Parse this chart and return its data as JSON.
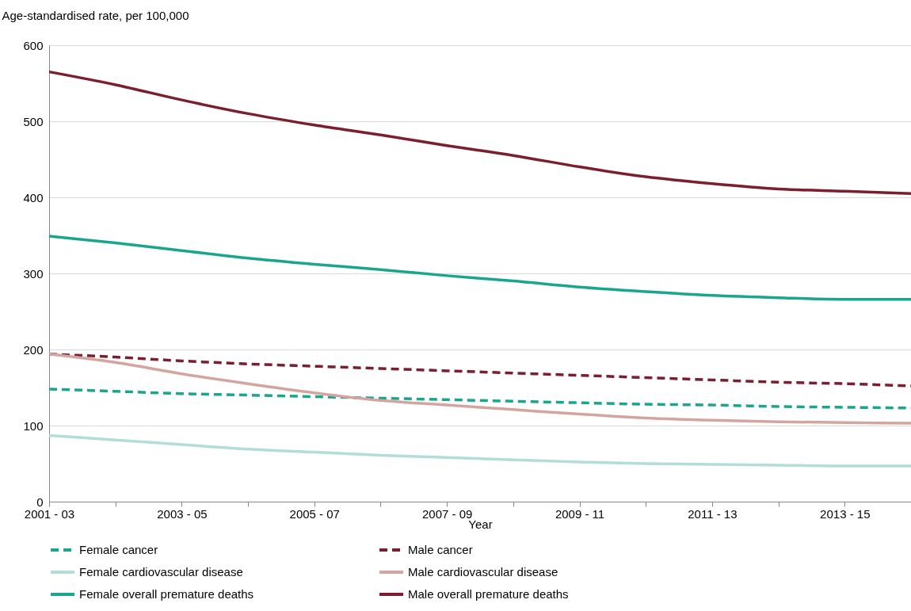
{
  "chart_data": {
    "type": "line",
    "xlabel": "Year",
    "ylabel": "Age-standardised rate, per 100,000",
    "categories": [
      "2001 - 03",
      null,
      "2003 - 05",
      null,
      "2005 - 07",
      null,
      "2007 - 09",
      null,
      "2009 - 11",
      null,
      "2011 - 13",
      null,
      "2013 - 15",
      null
    ],
    "series": [
      {
        "name": "Female cancer",
        "color": "#1aa68e",
        "line_style": "dashed",
        "values": [
          148,
          145,
          142,
          140,
          138,
          136,
          134,
          132,
          130,
          128,
          127,
          125,
          124,
          123
        ]
      },
      {
        "name": "Male cancer",
        "color": "#7b1f2e",
        "line_style": "dashed",
        "values": [
          194,
          190,
          185,
          181,
          178,
          175,
          172,
          169,
          166,
          163,
          160,
          157,
          155,
          152
        ]
      },
      {
        "name": "Female cardiovascular disease",
        "color": "#b2ddd8",
        "line_style": "solid",
        "values": [
          87,
          81,
          75,
          69,
          65,
          61,
          58,
          55,
          52,
          50,
          49,
          48,
          47,
          47
        ]
      },
      {
        "name": "Male cardiovascular disease",
        "color": "#d4a5a0",
        "line_style": "solid",
        "values": [
          194,
          183,
          168,
          155,
          143,
          133,
          127,
          121,
          115,
          110,
          107,
          105,
          104,
          103
        ]
      },
      {
        "name": "Female overall premature deaths",
        "color": "#1aa68e",
        "line_style": "solid",
        "values": [
          349,
          340,
          330,
          320,
          312,
          305,
          297,
          290,
          282,
          276,
          271,
          268,
          266,
          266
        ]
      },
      {
        "name": "Male overall premature deaths",
        "color": "#7b1f2e",
        "line_style": "solid",
        "values": [
          565,
          548,
          528,
          510,
          495,
          482,
          468,
          455,
          440,
          427,
          418,
          411,
          408,
          405
        ]
      }
    ],
    "ylim": [
      0,
      600
    ],
    "yticks": [
      0,
      100,
      200,
      300,
      400,
      500,
      600
    ],
    "grid": "y",
    "legend": "bottom",
    "marker": "none"
  }
}
